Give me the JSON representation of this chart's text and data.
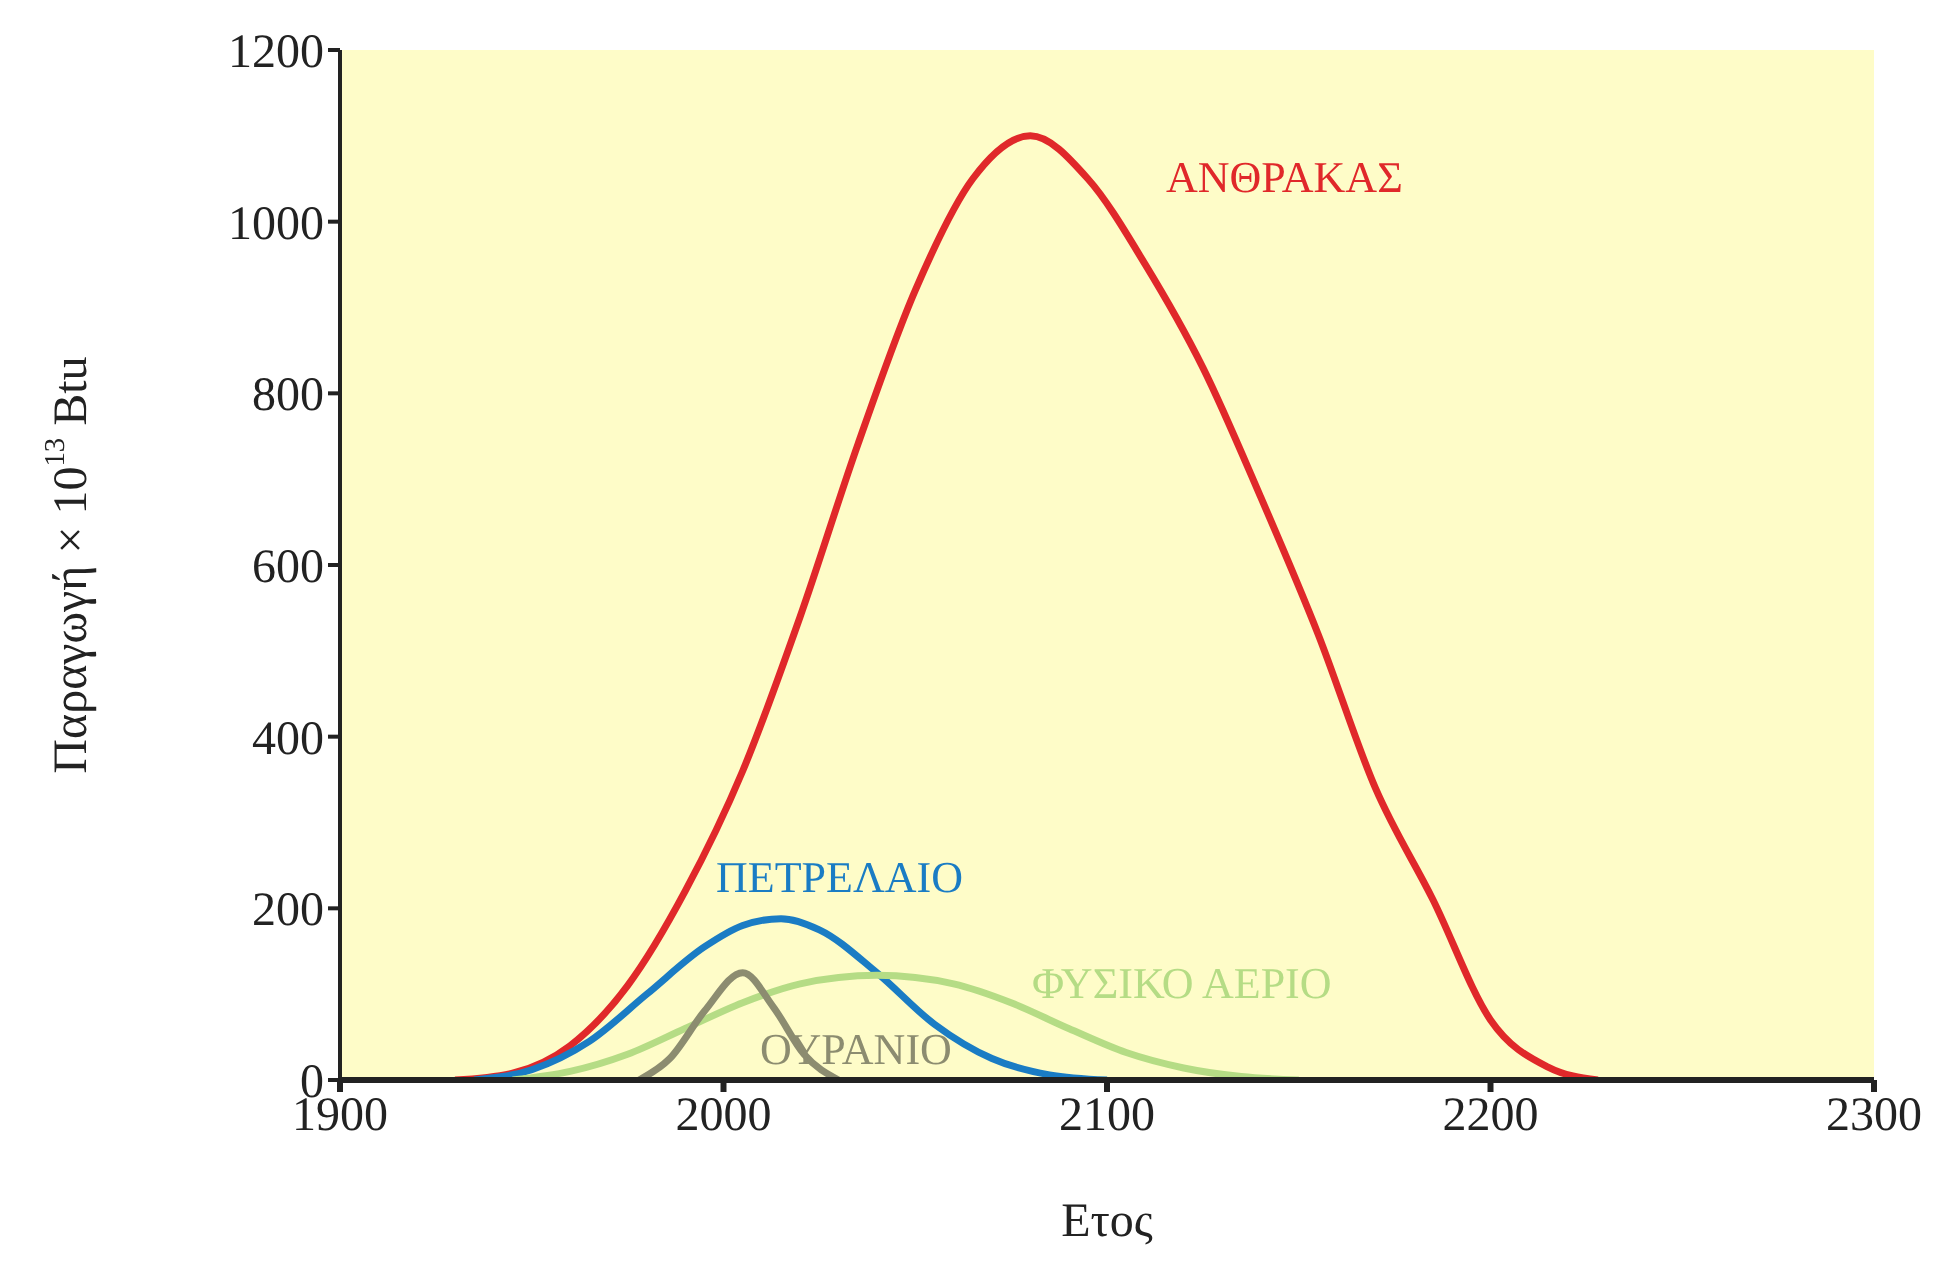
{
  "chart_data": {
    "type": "line",
    "xlabel": "Ετος",
    "ylabel": "Παραγωγή × 10$^{13}$ Btu",
    "xlim": [
      1900,
      2300
    ],
    "xticks": [
      1900,
      2000,
      2100,
      2200,
      2300
    ],
    "ylim": [
      0,
      1200
    ],
    "yticks": [
      0,
      200,
      400,
      600,
      800,
      1000,
      1200
    ],
    "grid": false,
    "legend": false,
    "marker": "none",
    "line_style": "solid",
    "series": [
      {
        "name": "ΑΝΘΡΑΚΑΣ",
        "color": "#e0282a",
        "x": [
          1930,
          1945,
          1960,
          1975,
          1990,
          2005,
          2020,
          2035,
          2050,
          2065,
          2080,
          2095,
          2110,
          2125,
          2140,
          2155,
          2170,
          2185,
          2200,
          2215,
          2228
        ],
        "values": [
          0,
          8,
          40,
          110,
          220,
          360,
          540,
          740,
          920,
          1050,
          1100,
          1050,
          950,
          830,
          680,
          520,
          340,
          210,
          70,
          15,
          0
        ]
      },
      {
        "name": "ΠΕΤΡΕΛΑΙΟ",
        "color": "#1a7cc4",
        "x": [
          1935,
          1950,
          1965,
          1980,
          1995,
          2005,
          2015,
          2025,
          2040,
          2055,
          2070,
          2085,
          2100
        ],
        "values": [
          0,
          12,
          45,
          100,
          155,
          180,
          188,
          175,
          125,
          65,
          25,
          6,
          0
        ]
      },
      {
        "name": "ΦΥΣΙΚΟ ΑΕΡΙΟ",
        "color": "#b5dc85",
        "x": [
          1945,
          1960,
          1975,
          1990,
          2005,
          2020,
          2040,
          2060,
          2075,
          2090,
          2105,
          2120,
          2135,
          2150
        ],
        "values": [
          0,
          10,
          30,
          60,
          90,
          112,
          122,
          112,
          90,
          60,
          32,
          14,
          4,
          0
        ]
      },
      {
        "name": "ΟΥΡΑΝΙΟ",
        "color": "#8c8c70",
        "x": [
          1978,
          1986,
          1995,
          2005,
          2013,
          2021,
          2030
        ],
        "values": [
          0,
          25,
          80,
          125,
          85,
          30,
          0
        ]
      }
    ]
  }
}
